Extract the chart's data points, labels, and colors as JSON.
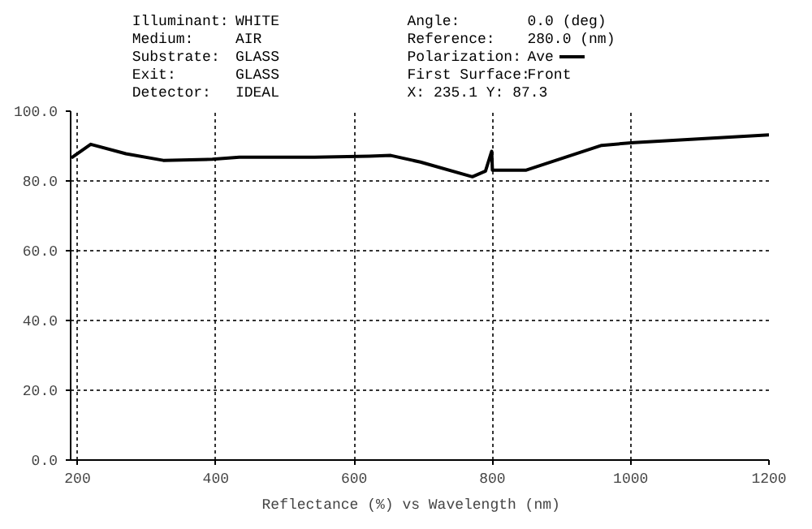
{
  "chart_data": {
    "type": "line",
    "xlabel": "Reflectance (%)  vs  Wavelength (nm)",
    "annotations": [
      "Illuminant:",
      "WHITE",
      "Medium:",
      "AIR",
      "Substrate:",
      "GLASS",
      "Exit:",
      "GLASS",
      "Detector:",
      "IDEAL",
      "Angle:",
      "0.0 (deg)",
      "Reference:",
      "280.0 (nm)",
      "Polarization:",
      "First Surface:",
      "Front",
      "X:  235.1  Y:  87.3"
    ],
    "series": [
      {
        "name": "Ave",
        "color": "#000000",
        "x": [
          191,
          219,
          270,
          324,
          395,
          434,
          543,
          622,
          653,
          696,
          771,
          790,
          799,
          800,
          849,
          958,
          1005,
          1200
        ],
        "values": [
          86.6,
          90.5,
          87.8,
          85.9,
          86.2,
          86.8,
          86.8,
          87.1,
          87.3,
          85.4,
          81.2,
          82.8,
          88.5,
          83.1,
          83.1,
          90.2,
          91.0,
          93.2
        ]
      }
    ],
    "xlim": [
      190,
      1200
    ],
    "ylim": [
      0,
      100
    ],
    "xticks": [
      200,
      400,
      600,
      800,
      1000,
      1200
    ],
    "yticks": [
      {
        "value": 0,
        "label": "0.0"
      },
      {
        "value": 20,
        "label": "20.0"
      },
      {
        "value": 40,
        "label": "40.0"
      },
      {
        "value": 60,
        "label": "60.0"
      },
      {
        "value": 80,
        "label": "80.0"
      },
      {
        "value": 100,
        "label": "100.0"
      }
    ],
    "grid": true,
    "line_style": "solid",
    "marker": "none"
  }
}
